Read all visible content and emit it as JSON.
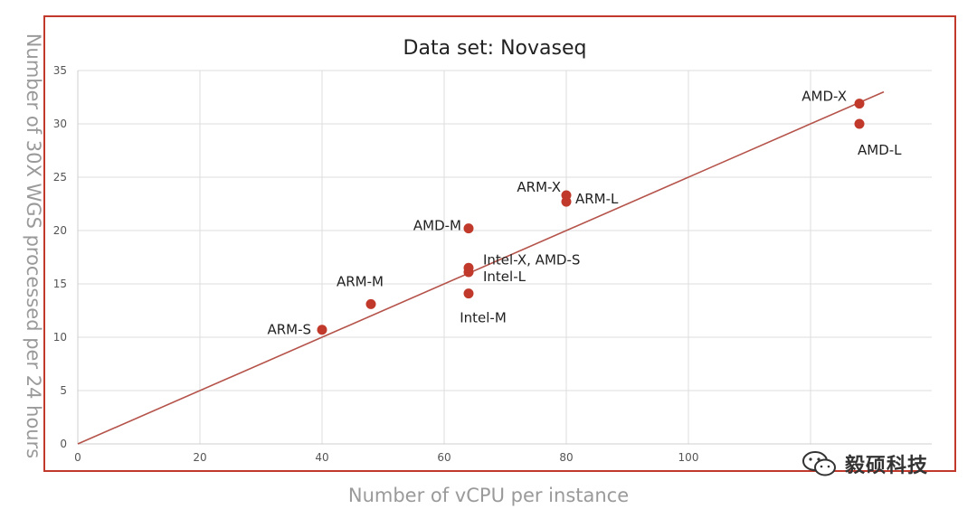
{
  "chart_data": {
    "type": "scatter",
    "title": "Data set: Novaseq",
    "xlabel": "Number of vCPU per instance",
    "ylabel": "Number of 30X WGS processed per 24 hours",
    "xlim": [
      0,
      140
    ],
    "ylim": [
      0,
      35
    ],
    "xticks": [
      0,
      20,
      40,
      60,
      80,
      100
    ],
    "yticks": [
      0,
      5,
      10,
      15,
      20,
      25,
      30,
      35
    ],
    "grid": true,
    "trendline": {
      "x": [
        0,
        132
      ],
      "y": [
        0,
        33
      ]
    },
    "points": [
      {
        "label": "ARM-S",
        "x": 40,
        "y": 10.7
      },
      {
        "label": "ARM-M",
        "x": 48,
        "y": 13.1
      },
      {
        "label": "Intel-M",
        "x": 64,
        "y": 14.1
      },
      {
        "label": "Intel-L",
        "x": 64,
        "y": 16.1
      },
      {
        "label": "Intel-X, AMD-S",
        "x": 64,
        "y": 16.5
      },
      {
        "label": "AMD-M",
        "x": 64,
        "y": 20.2
      },
      {
        "label": "ARM-L",
        "x": 80,
        "y": 22.7
      },
      {
        "label": "ARM-X",
        "x": 80,
        "y": 23.3
      },
      {
        "label": "AMD-L",
        "x": 128,
        "y": 30.0
      },
      {
        "label": "AMD-X",
        "x": 128,
        "y": 31.9
      }
    ],
    "colors": {
      "point": "#c0392b",
      "trendline": "#b5534a",
      "grid": "#dddddd",
      "frame": "#c0392b"
    }
  },
  "watermark": {
    "text": "毅硕科技",
    "icon": "wechat-icon"
  }
}
